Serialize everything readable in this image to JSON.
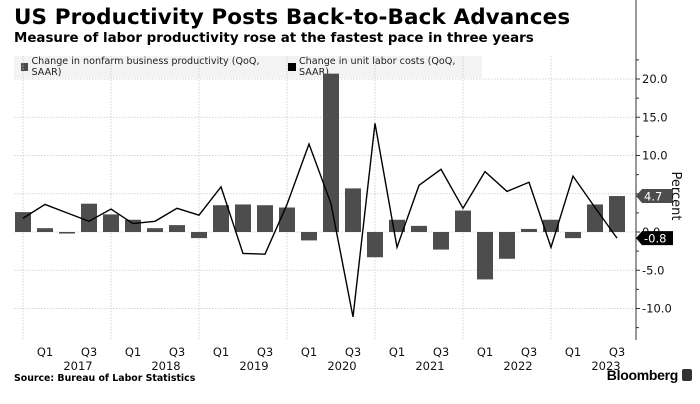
{
  "header": {
    "title": "US Productivity Posts Back-to-Back Advances",
    "subtitle": "Measure of labor productivity rose at the fastest pace in three years"
  },
  "footer": {
    "source": "Source: Bureau of Labor Statistics",
    "brand": "Bloomberg"
  },
  "colors": {
    "bar": "#4d4d4d",
    "line": "#000000",
    "grid": "#c8c8c8",
    "legend_bg": "#f3f3f3",
    "last_bar_label_bg": "#4d4d4d",
    "last_line_label_bg": "#000000"
  },
  "chart_data": {
    "type": "bar",
    "title": "US Productivity Posts Back-to-Back Advances",
    "subtitle": "Measure of labor productivity rose at the fastest pace in three years",
    "ylabel": "Percent",
    "xlabel": "",
    "ylim": [
      -13,
      23
    ],
    "yticks": [
      20.0,
      15.0,
      10.0,
      5.0,
      0.0,
      -5.0,
      -10.0
    ],
    "ytick_labels": [
      "20.0",
      "15.0",
      "10.0",
      "5.0",
      "0.0",
      "-5.0",
      "-10.0"
    ],
    "grid": true,
    "legend_position": "top-left",
    "categories": [
      "2016 Q4",
      "2017 Q1",
      "2017 Q2",
      "2017 Q3",
      "2017 Q4",
      "2018 Q1",
      "2018 Q2",
      "2018 Q3",
      "2018 Q4",
      "2019 Q1",
      "2019 Q2",
      "2019 Q3",
      "2019 Q4",
      "2020 Q1",
      "2020 Q2",
      "2020 Q3",
      "2020 Q4",
      "2021 Q1",
      "2021 Q2",
      "2021 Q3",
      "2021 Q4",
      "2022 Q1",
      "2022 Q2",
      "2022 Q3",
      "2022 Q4",
      "2023 Q1",
      "2023 Q2",
      "2023 Q3"
    ],
    "x_tick_labels": [
      {
        "category": "2017 Q1",
        "label": "Q1"
      },
      {
        "category": "2017 Q3",
        "label": "Q3"
      },
      {
        "category": "2018 Q1",
        "label": "Q1"
      },
      {
        "category": "2018 Q3",
        "label": "Q3"
      },
      {
        "category": "2019 Q1",
        "label": "Q1"
      },
      {
        "category": "2019 Q3",
        "label": "Q3"
      },
      {
        "category": "2020 Q1",
        "label": "Q1"
      },
      {
        "category": "2020 Q3",
        "label": "Q3"
      },
      {
        "category": "2021 Q1",
        "label": "Q1"
      },
      {
        "category": "2021 Q3",
        "label": "Q3"
      },
      {
        "category": "2022 Q1",
        "label": "Q1"
      },
      {
        "category": "2022 Q3",
        "label": "Q3"
      },
      {
        "category": "2023 Q1",
        "label": "Q1"
      },
      {
        "category": "2023 Q3",
        "label": "Q3"
      }
    ],
    "year_labels": [
      "2017",
      "2018",
      "2019",
      "2020",
      "2021",
      "2022",
      "2023"
    ],
    "series": [
      {
        "name": "Change in nonfarm business productivity (QoQ, SAAR)",
        "type": "bar",
        "values": [
          2.6,
          0.5,
          -0.2,
          3.7,
          2.3,
          1.6,
          0.5,
          0.9,
          -0.8,
          3.5,
          3.6,
          3.5,
          3.2,
          -1.1,
          20.7,
          5.7,
          -3.3,
          1.6,
          0.8,
          -2.3,
          2.8,
          -6.2,
          -3.5,
          0.4,
          1.6,
          -0.8,
          3.6,
          4.7
        ],
        "last_value_label": "4.7"
      },
      {
        "name": "Change in unit labor costs (QoQ, SAAR)",
        "type": "line",
        "values": [
          1.8,
          3.6,
          2.5,
          1.4,
          3.0,
          1.1,
          1.4,
          3.1,
          2.2,
          5.9,
          -2.8,
          -2.9,
          3.6,
          11.5,
          3.7,
          -11.1,
          14.2,
          -2.0,
          6.1,
          8.2,
          3.1,
          7.9,
          5.3,
          6.5,
          -2.0,
          7.3,
          3.2,
          -0.8
        ],
        "last_value_label": "-0.8"
      }
    ]
  }
}
